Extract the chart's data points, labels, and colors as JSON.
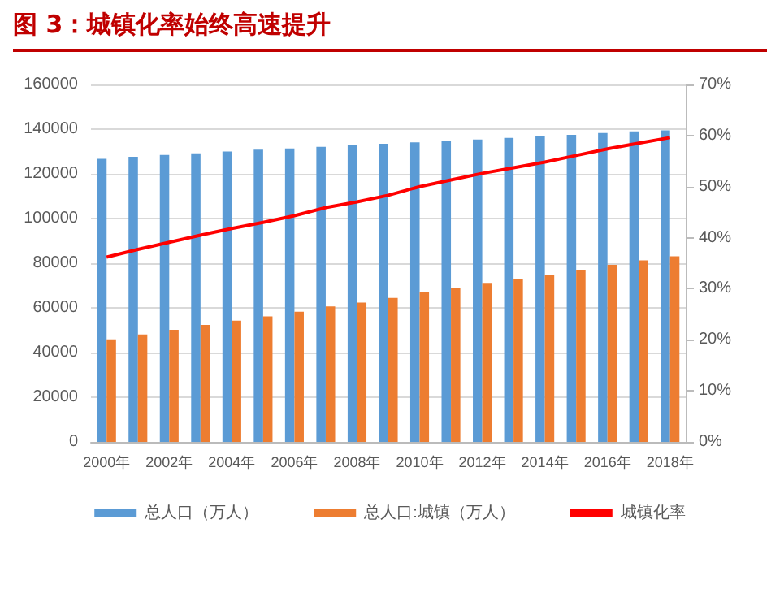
{
  "chart_data": {
    "type": "bar",
    "title": "图 3：城镇化率始终高速提升",
    "categories": [
      "2000年",
      null,
      "2002年",
      null,
      "2004年",
      null,
      "2006年",
      null,
      "2008年",
      null,
      "2010年",
      null,
      "2012年",
      null,
      "2014年",
      null,
      "2016年",
      null,
      "2018年"
    ],
    "series": [
      {
        "name": "总人口（万人）",
        "color": "#5b9bd5",
        "values": [
          126700,
          127600,
          128500,
          129200,
          130000,
          130800,
          131400,
          132100,
          132800,
          133500,
          134100,
          134700,
          135400,
          136100,
          136800,
          137500,
          138300,
          139000,
          139500
        ]
      },
      {
        "name": "总人口:城镇（万人）",
        "color": "#ed7d31",
        "values": [
          45900,
          48100,
          50200,
          52400,
          54300,
          56200,
          58300,
          60600,
          62400,
          64500,
          67000,
          69100,
          71200,
          73100,
          74900,
          77100,
          79300,
          81300,
          83100
        ]
      },
      {
        "name": "城镇化率",
        "type": "line",
        "axis": "y2",
        "color": "#ff0000",
        "values": [
          36.2,
          37.7,
          39.1,
          40.5,
          41.8,
          43.0,
          44.3,
          45.9,
          47.0,
          48.3,
          50.0,
          51.3,
          52.6,
          53.7,
          54.8,
          56.1,
          57.4,
          58.5,
          59.6
        ]
      }
    ],
    "ylim": [
      0,
      160000
    ],
    "yticks": [
      0,
      20000,
      40000,
      60000,
      80000,
      100000,
      120000,
      140000,
      160000
    ],
    "y2lim": [
      0,
      70
    ],
    "y2ticks": [
      {
        "value": 0,
        "label": "0%"
      },
      {
        "value": 10,
        "label": "10%"
      },
      {
        "value": 20,
        "label": "20%"
      },
      {
        "value": 30,
        "label": "30%"
      },
      {
        "value": 40,
        "label": "40%"
      },
      {
        "value": 50,
        "label": "50%"
      },
      {
        "value": 60,
        "label": "60%"
      },
      {
        "value": 70,
        "label": "70%"
      }
    ],
    "grid": "y",
    "legend": "bottom",
    "marker": "none",
    "line_style": "solid"
  }
}
